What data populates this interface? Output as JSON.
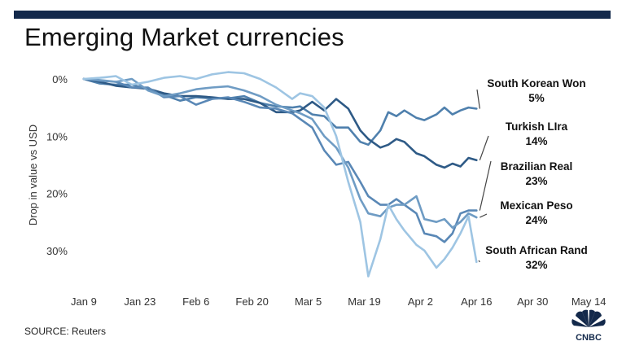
{
  "title": "Emerging Market currencies",
  "source": "SOURCE: Reuters",
  "logo": {
    "text": "CNBC",
    "icon": "nbc-peacock-icon"
  },
  "colors": {
    "top_bar": "#13294b",
    "south_korean_won": "#4f80ad",
    "turkish_lira": "#2e5a86",
    "brazilian_real": "#5a88b6",
    "mexican_peso": "#6f9cc4",
    "south_african_rand": "#9ec5e3"
  },
  "chart_data": {
    "type": "line",
    "title": "Emerging Market currencies",
    "ylabel": "Drop in value vs USD",
    "xlabel": "",
    "y_inverted": true,
    "ylim": [
      0,
      36
    ],
    "yticks": [
      {
        "value": 0,
        "label": "0%"
      },
      {
        "value": 10,
        "label": "10%"
      },
      {
        "value": 20,
        "label": "20%"
      },
      {
        "value": 30,
        "label": "30%"
      }
    ],
    "xlim": [
      "2020-01-08",
      "2020-05-16"
    ],
    "xticks": [
      {
        "date": "2020-01-09",
        "label": "Jan 9"
      },
      {
        "date": "2020-01-23",
        "label": "Jan 23"
      },
      {
        "date": "2020-02-06",
        "label": "Feb 6"
      },
      {
        "date": "2020-02-20",
        "label": "Feb 20"
      },
      {
        "date": "2020-03-05",
        "label": "Mar 5"
      },
      {
        "date": "2020-03-19",
        "label": "Mar 19"
      },
      {
        "date": "2020-04-02",
        "label": "Apr 2"
      },
      {
        "date": "2020-04-16",
        "label": "Apr 16"
      },
      {
        "date": "2020-04-30",
        "label": "Apr 30"
      },
      {
        "date": "2020-05-14",
        "label": "May 14"
      }
    ],
    "grid": false,
    "series": [
      {
        "key": "south_korean_won",
        "name": "South Korean Won",
        "final_label": "5%",
        "values": [
          [
            "2020-01-09",
            0
          ],
          [
            "2020-01-13",
            0.8
          ],
          [
            "2020-01-17",
            1.0
          ],
          [
            "2020-01-21",
            1.0
          ],
          [
            "2020-01-25",
            1.8
          ],
          [
            "2020-01-29",
            2.8
          ],
          [
            "2020-02-02",
            3.8
          ],
          [
            "2020-02-06",
            3.2
          ],
          [
            "2020-02-10",
            3.4
          ],
          [
            "2020-02-14",
            3.4
          ],
          [
            "2020-02-18",
            3.0
          ],
          [
            "2020-02-22",
            4.2
          ],
          [
            "2020-02-26",
            4.8
          ],
          [
            "2020-03-01",
            5.0
          ],
          [
            "2020-03-03",
            4.8
          ],
          [
            "2020-03-06",
            6.2
          ],
          [
            "2020-03-09",
            6.5
          ],
          [
            "2020-03-12",
            8.5
          ],
          [
            "2020-03-15",
            8.5
          ],
          [
            "2020-03-18",
            11.0
          ],
          [
            "2020-03-20",
            11.5
          ],
          [
            "2020-03-23",
            9.0
          ],
          [
            "2020-03-25",
            5.8
          ],
          [
            "2020-03-27",
            6.5
          ],
          [
            "2020-03-29",
            5.5
          ],
          [
            "2020-04-01",
            6.8
          ],
          [
            "2020-04-03",
            7.2
          ],
          [
            "2020-04-06",
            6.2
          ],
          [
            "2020-04-08",
            5.0
          ],
          [
            "2020-04-10",
            6.2
          ],
          [
            "2020-04-12",
            5.5
          ],
          [
            "2020-04-14",
            5.0
          ],
          [
            "2020-04-16",
            5.2
          ]
        ]
      },
      {
        "key": "turkish_lira",
        "name": "Turkish LIra",
        "final_label": "14%",
        "values": [
          [
            "2020-01-09",
            0
          ],
          [
            "2020-01-13",
            0.5
          ],
          [
            "2020-01-17",
            1.2
          ],
          [
            "2020-01-21",
            1.5
          ],
          [
            "2020-01-25",
            1.7
          ],
          [
            "2020-01-29",
            2.5
          ],
          [
            "2020-02-02",
            3.0
          ],
          [
            "2020-02-06",
            3.0
          ],
          [
            "2020-02-10",
            3.2
          ],
          [
            "2020-02-14",
            3.5
          ],
          [
            "2020-02-18",
            3.5
          ],
          [
            "2020-02-22",
            4.2
          ],
          [
            "2020-02-26",
            5.8
          ],
          [
            "2020-03-01",
            5.8
          ],
          [
            "2020-03-03",
            5.5
          ],
          [
            "2020-03-06",
            4.0
          ],
          [
            "2020-03-09",
            5.5
          ],
          [
            "2020-03-12",
            3.5
          ],
          [
            "2020-03-15",
            5.2
          ],
          [
            "2020-03-18",
            9.0
          ],
          [
            "2020-03-20",
            10.5
          ],
          [
            "2020-03-23",
            12.0
          ],
          [
            "2020-03-25",
            11.5
          ],
          [
            "2020-03-27",
            10.5
          ],
          [
            "2020-03-29",
            11.0
          ],
          [
            "2020-04-01",
            13.0
          ],
          [
            "2020-04-03",
            13.5
          ],
          [
            "2020-04-06",
            15.0
          ],
          [
            "2020-04-08",
            15.5
          ],
          [
            "2020-04-10",
            14.8
          ],
          [
            "2020-04-12",
            15.3
          ],
          [
            "2020-04-14",
            13.8
          ],
          [
            "2020-04-16",
            14.2
          ]
        ]
      },
      {
        "key": "brazilian_real",
        "name": "Brazilian Real",
        "final_label": "23%",
        "values": [
          [
            "2020-01-09",
            0
          ],
          [
            "2020-01-13",
            0.3
          ],
          [
            "2020-01-17",
            0.5
          ],
          [
            "2020-01-21",
            1.5
          ],
          [
            "2020-01-25",
            1.5
          ],
          [
            "2020-01-29",
            3.2
          ],
          [
            "2020-02-02",
            3.0
          ],
          [
            "2020-02-06",
            4.5
          ],
          [
            "2020-02-10",
            3.5
          ],
          [
            "2020-02-14",
            3.2
          ],
          [
            "2020-02-18",
            4.0
          ],
          [
            "2020-02-22",
            5.0
          ],
          [
            "2020-02-26",
            5.2
          ],
          [
            "2020-03-01",
            6.0
          ],
          [
            "2020-03-03",
            7.0
          ],
          [
            "2020-03-06",
            8.5
          ],
          [
            "2020-03-09",
            12.5
          ],
          [
            "2020-03-12",
            15.0
          ],
          [
            "2020-03-15",
            14.5
          ],
          [
            "2020-03-18",
            18.0
          ],
          [
            "2020-03-20",
            20.5
          ],
          [
            "2020-03-23",
            22.0
          ],
          [
            "2020-03-25",
            22.0
          ],
          [
            "2020-03-27",
            21.0
          ],
          [
            "2020-03-29",
            22.0
          ],
          [
            "2020-04-01",
            23.5
          ],
          [
            "2020-04-03",
            27.0
          ],
          [
            "2020-04-06",
            27.5
          ],
          [
            "2020-04-08",
            28.5
          ],
          [
            "2020-04-10",
            27.0
          ],
          [
            "2020-04-12",
            23.5
          ],
          [
            "2020-04-14",
            23.0
          ],
          [
            "2020-04-16",
            23.0
          ]
        ]
      },
      {
        "key": "mexican_peso",
        "name": "Mexican Peso",
        "final_label": "24%",
        "values": [
          [
            "2020-01-09",
            0
          ],
          [
            "2020-01-13",
            0.2
          ],
          [
            "2020-01-17",
            0.5
          ],
          [
            "2020-01-21",
            0.0
          ],
          [
            "2020-01-25",
            2.0
          ],
          [
            "2020-01-29",
            3.0
          ],
          [
            "2020-02-02",
            2.5
          ],
          [
            "2020-02-06",
            1.8
          ],
          [
            "2020-02-10",
            1.5
          ],
          [
            "2020-02-14",
            1.3
          ],
          [
            "2020-02-18",
            2.0
          ],
          [
            "2020-02-22",
            3.0
          ],
          [
            "2020-02-26",
            4.5
          ],
          [
            "2020-03-01",
            5.5
          ],
          [
            "2020-03-03",
            6.0
          ],
          [
            "2020-03-06",
            7.0
          ],
          [
            "2020-03-09",
            10.0
          ],
          [
            "2020-03-12",
            12.0
          ],
          [
            "2020-03-15",
            15.5
          ],
          [
            "2020-03-18",
            21.0
          ],
          [
            "2020-03-20",
            23.5
          ],
          [
            "2020-03-23",
            24.0
          ],
          [
            "2020-03-25",
            22.5
          ],
          [
            "2020-03-27",
            22.0
          ],
          [
            "2020-03-29",
            22.0
          ],
          [
            "2020-04-01",
            20.5
          ],
          [
            "2020-04-03",
            24.5
          ],
          [
            "2020-04-06",
            25.0
          ],
          [
            "2020-04-08",
            24.5
          ],
          [
            "2020-04-10",
            26.0
          ],
          [
            "2020-04-12",
            25.0
          ],
          [
            "2020-04-14",
            23.5
          ],
          [
            "2020-04-16",
            24.2
          ]
        ]
      },
      {
        "key": "south_african_rand",
        "name": "South African Rand",
        "final_label": "32%",
        "values": [
          [
            "2020-01-09",
            0
          ],
          [
            "2020-01-13",
            -0.2
          ],
          [
            "2020-01-17",
            -0.5
          ],
          [
            "2020-01-21",
            1.0
          ],
          [
            "2020-01-25",
            0.5
          ],
          [
            "2020-01-29",
            -0.2
          ],
          [
            "2020-02-02",
            -0.5
          ],
          [
            "2020-02-06",
            0.0
          ],
          [
            "2020-02-10",
            -0.8
          ],
          [
            "2020-02-14",
            -1.2
          ],
          [
            "2020-02-18",
            -1.0
          ],
          [
            "2020-02-22",
            0.0
          ],
          [
            "2020-02-26",
            1.5
          ],
          [
            "2020-03-01",
            3.5
          ],
          [
            "2020-03-03",
            2.5
          ],
          [
            "2020-03-06",
            3.0
          ],
          [
            "2020-03-09",
            5.0
          ],
          [
            "2020-03-12",
            10.0
          ],
          [
            "2020-03-15",
            18.0
          ],
          [
            "2020-03-18",
            25.0
          ],
          [
            "2020-03-20",
            34.5
          ],
          [
            "2020-03-23",
            28.0
          ],
          [
            "2020-03-25",
            22.0
          ],
          [
            "2020-03-27",
            24.5
          ],
          [
            "2020-03-29",
            26.5
          ],
          [
            "2020-04-01",
            29.0
          ],
          [
            "2020-04-03",
            30.0
          ],
          [
            "2020-04-06",
            33.0
          ],
          [
            "2020-04-08",
            31.5
          ],
          [
            "2020-04-10",
            29.5
          ],
          [
            "2020-04-12",
            27.0
          ],
          [
            "2020-04-14",
            24.0
          ],
          [
            "2020-04-16",
            32.0
          ]
        ]
      }
    ]
  }
}
